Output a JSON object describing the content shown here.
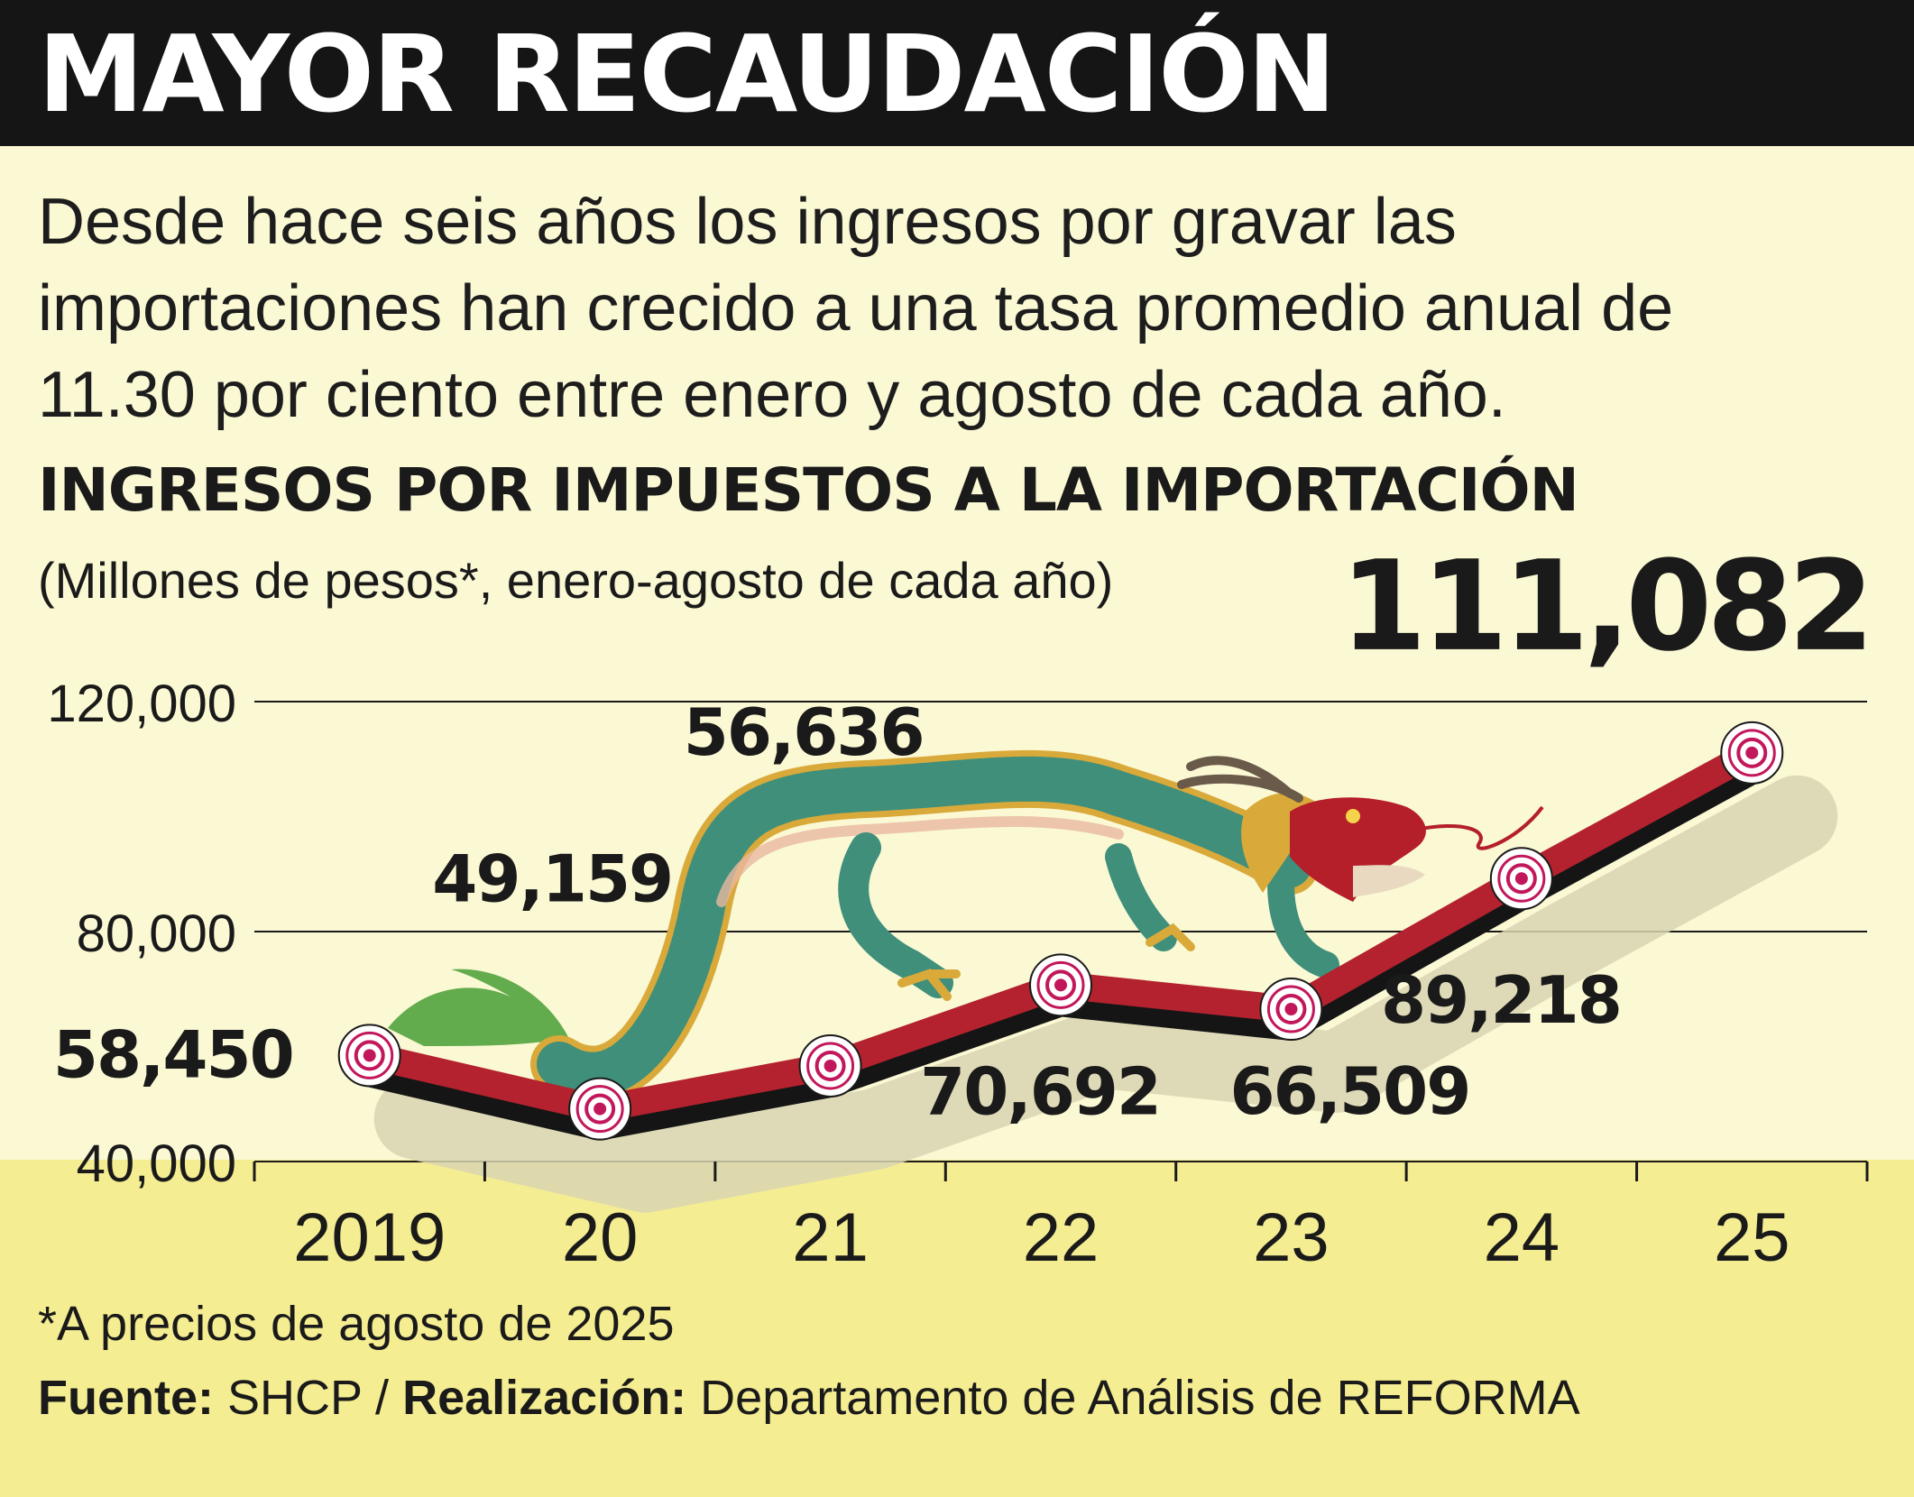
{
  "header": {
    "headline": "MAYOR RECAUDACIÓN",
    "dek": "Desde hace seis años los ingresos por gravar las importaciones han crecido a una tasa promedio anual de 11.30 por ciento entre enero y agosto de cada año."
  },
  "chart_data": {
    "type": "line",
    "title": "INGRESOS POR IMPUESTOS A LA IMPORTACIÓN",
    "subtitle": "(Millones de pesos*, enero-agosto de cada año)",
    "categories": [
      "2019",
      "20",
      "21",
      "22",
      "23",
      "24",
      "25"
    ],
    "values": [
      58450,
      49159,
      56636,
      70692,
      66509,
      89218,
      111082
    ],
    "data_labels": [
      "58,450",
      "49,159",
      "56,636",
      "70,692",
      "66,509",
      "89,218",
      "111,082"
    ],
    "highlight_index": 6,
    "ylim": [
      40000,
      120000
    ],
    "yticks": [
      40000,
      80000,
      120000
    ],
    "ytick_labels": [
      "40,000",
      "80,000",
      "120,000"
    ],
    "grid": true,
    "colors": {
      "line_top": "#b3222e",
      "line_shadow": "#151515",
      "marker": "#c2185b",
      "dragon_body": "#3f8f7b",
      "dragon_trim": "#d9a93a",
      "dragon_head": "#b51f2a"
    }
  },
  "footer": {
    "note": "*A precios de agosto de 2025",
    "source_label": "Fuente:",
    "source_value": " SHCP / ",
    "credit_label": "Realización:",
    "credit_value": " Departamento de Análisis de REFORMA"
  }
}
